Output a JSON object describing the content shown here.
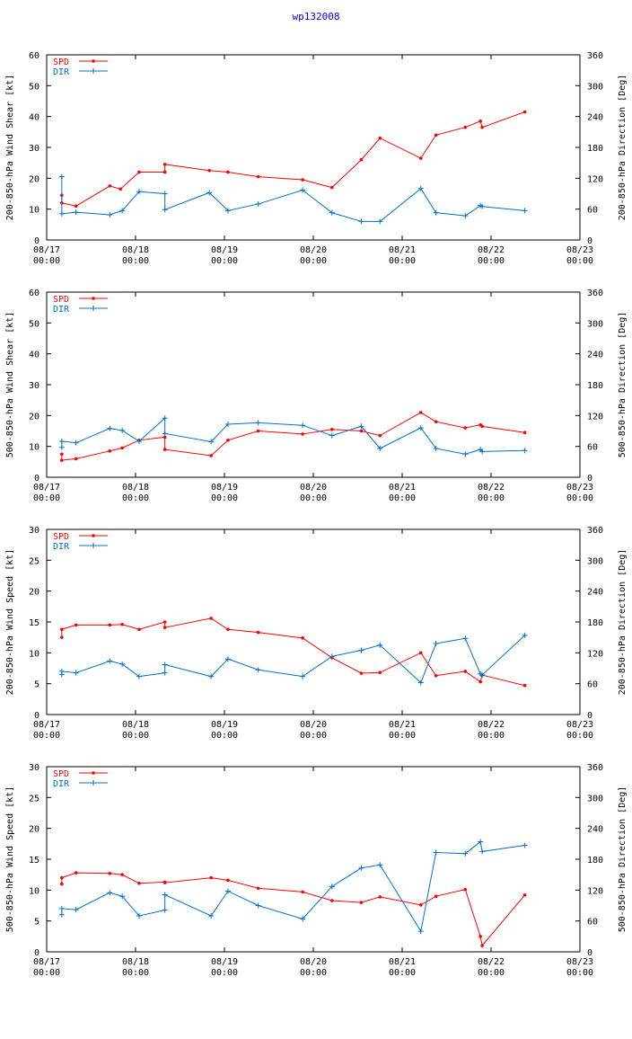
{
  "page": {
    "title": "wp132008"
  },
  "colors": {
    "spd": "#ff0000",
    "dir": "#0070d0",
    "axis": "#000000",
    "title": "#0000ff"
  },
  "x_ticks": [
    {
      "value": 0,
      "line1": "08/17",
      "line2": "00:00"
    },
    {
      "value": 1,
      "line1": "08/18",
      "line2": "00:00"
    },
    {
      "value": 2,
      "line1": "08/19",
      "line2": "00:00"
    },
    {
      "value": 3,
      "line1": "08/20",
      "line2": "00:00"
    },
    {
      "value": 4,
      "line1": "08/21",
      "line2": "00:00"
    },
    {
      "value": 5,
      "line1": "08/22",
      "line2": "00:00"
    },
    {
      "value": 6,
      "line1": "08/23",
      "line2": "00:00"
    }
  ],
  "chart_data": [
    {
      "type": "line",
      "ylabel": "200-850-hPa Wind Shear [kt]",
      "y2label": "200-850-hPa Direction [Deg]",
      "xlim": [
        0,
        6
      ],
      "ylim": [
        0,
        60
      ],
      "y2lim": [
        0,
        360
      ],
      "yticks": [
        0,
        10,
        20,
        30,
        40,
        50,
        60
      ],
      "y2ticks": [
        0,
        60,
        120,
        180,
        240,
        300,
        360
      ],
      "legend": [
        "SPD",
        "DIR"
      ],
      "series": [
        {
          "name": "SPD",
          "axis": "left",
          "x": [
            0.17,
            0.17,
            0.33,
            0.71,
            0.83,
            1.04,
            1.33,
            1.33,
            1.83,
            2.04,
            2.38,
            2.88,
            3.21,
            3.54,
            3.75,
            4.21,
            4.38,
            4.71,
            4.88,
            4.9,
            5.38
          ],
          "y": [
            14.5,
            12,
            11,
            17.5,
            16.5,
            22,
            22,
            24.5,
            22.5,
            22,
            20.5,
            19.5,
            17,
            26,
            33,
            26.5,
            34,
            36.5,
            38.5,
            36.5,
            41.5
          ]
        },
        {
          "name": "DIR",
          "axis": "right",
          "x": [
            0.17,
            0.17,
            0.33,
            0.71,
            0.85,
            1.04,
            1.33,
            1.33,
            1.83,
            2.04,
            2.38,
            2.88,
            3.21,
            3.54,
            3.75,
            4.21,
            4.38,
            4.71,
            4.88,
            4.9,
            5.38
          ],
          "y": [
            123,
            51,
            54,
            49,
            57,
            94,
            90,
            59,
            92,
            57,
            70,
            97,
            53,
            36,
            36,
            100,
            53,
            47,
            67,
            65,
            57
          ]
        }
      ]
    },
    {
      "type": "line",
      "ylabel": "500-850-hPa Wind Shear [kt]",
      "y2label": "500-850-hPa Direction [Deg]",
      "xlim": [
        0,
        6
      ],
      "ylim": [
        0,
        60
      ],
      "y2lim": [
        0,
        360
      ],
      "yticks": [
        0,
        10,
        20,
        30,
        40,
        50,
        60
      ],
      "y2ticks": [
        0,
        60,
        120,
        180,
        240,
        300,
        360
      ],
      "legend": [
        "SPD",
        "DIR"
      ],
      "series": [
        {
          "name": "SPD",
          "axis": "left",
          "x": [
            0.17,
            0.17,
            0.33,
            0.71,
            0.85,
            1.04,
            1.33,
            1.33,
            1.85,
            2.04,
            2.38,
            2.88,
            3.21,
            3.54,
            3.75,
            4.21,
            4.38,
            4.71,
            4.88,
            4.9,
            5.38
          ],
          "y": [
            7.5,
            5.5,
            6,
            8.5,
            9.5,
            12,
            13,
            9,
            7,
            12,
            15,
            14,
            15.5,
            15,
            13.5,
            21,
            18,
            16,
            17,
            16.5,
            14.5
          ]
        },
        {
          "name": "DIR",
          "axis": "right",
          "x": [
            0.17,
            0.17,
            0.33,
            0.71,
            0.85,
            1.04,
            1.33,
            1.33,
            1.85,
            2.04,
            2.38,
            2.88,
            3.21,
            3.54,
            3.75,
            4.21,
            4.38,
            4.71,
            4.88,
            4.9,
            5.38
          ],
          "y": [
            58,
            70,
            67,
            95,
            91,
            70,
            115,
            85,
            69,
            103,
            106,
            101,
            81,
            99,
            56,
            96,
            56,
            45,
            54,
            50,
            52
          ]
        }
      ]
    },
    {
      "type": "line",
      "ylabel": "200-850-hPa Wind Speed [kt]",
      "y2label": "200-850-hPa Direction [Deg]",
      "xlim": [
        0,
        6
      ],
      "ylim": [
        0,
        30
      ],
      "y2lim": [
        0,
        360
      ],
      "yticks": [
        0,
        5,
        10,
        15,
        20,
        25,
        30
      ],
      "y2ticks": [
        0,
        60,
        120,
        180,
        240,
        300,
        360
      ],
      "legend": [
        "SPD",
        "DIR"
      ],
      "series": [
        {
          "name": "SPD",
          "axis": "left",
          "x": [
            0.17,
            0.17,
            0.33,
            0.71,
            0.85,
            1.04,
            1.33,
            1.33,
            1.85,
            2.04,
            2.38,
            2.88,
            3.21,
            3.54,
            3.75,
            4.21,
            4.38,
            4.71,
            4.88,
            4.9,
            5.38
          ],
          "y": [
            12.5,
            13.8,
            14.5,
            14.5,
            14.6,
            13.8,
            15,
            14.1,
            15.6,
            13.8,
            13.3,
            12.4,
            9.2,
            6.7,
            6.8,
            10,
            6.3,
            7,
            5.3,
            6.4,
            4.7
          ]
        },
        {
          "name": "DIR",
          "axis": "right",
          "x": [
            0.17,
            0.17,
            0.33,
            0.71,
            0.85,
            1.04,
            1.33,
            1.33,
            1.85,
            2.04,
            2.38,
            2.88,
            3.21,
            3.54,
            3.75,
            4.21,
            4.38,
            4.71,
            4.88,
            4.9,
            5.38
          ],
          "y": [
            78,
            84,
            81,
            104,
            98,
            74,
            81,
            97,
            74,
            108,
            87,
            74,
            113,
            125,
            135,
            62,
            138,
            148,
            79,
            77,
            154
          ]
        }
      ]
    },
    {
      "type": "line",
      "ylabel": "500-850-hPa Wind Speed [kt]",
      "y2label": "500-850-hPa Direction [Deg]",
      "xlim": [
        0,
        6
      ],
      "ylim": [
        0,
        30
      ],
      "y2lim": [
        0,
        360
      ],
      "yticks": [
        0,
        5,
        10,
        15,
        20,
        25,
        30
      ],
      "y2ticks": [
        0,
        60,
        120,
        180,
        240,
        300,
        360
      ],
      "legend": [
        "SPD",
        "DIR"
      ],
      "series": [
        {
          "name": "SPD",
          "axis": "left",
          "x": [
            0.17,
            0.17,
            0.33,
            0.71,
            0.85,
            1.04,
            1.33,
            1.33,
            1.85,
            2.04,
            2.38,
            2.88,
            3.21,
            3.54,
            3.75,
            4.21,
            4.38,
            4.71,
            4.88,
            4.9,
            5.38
          ],
          "y": [
            11,
            12,
            12.8,
            12.7,
            12.5,
            11.1,
            11.3,
            11.2,
            12,
            11.6,
            10.3,
            9.7,
            8.3,
            8,
            8.9,
            7.6,
            9,
            10.1,
            2.5,
            1,
            9.2
          ]
        },
        {
          "name": "DIR",
          "axis": "right",
          "x": [
            0.17,
            0.17,
            0.33,
            0.71,
            0.85,
            1.04,
            1.33,
            1.33,
            1.85,
            2.04,
            2.38,
            2.88,
            3.21,
            3.54,
            3.75,
            4.21,
            4.38,
            4.71,
            4.88,
            4.9,
            5.38
          ],
          "y": [
            72,
            84,
            82,
            115,
            108,
            70,
            81,
            111,
            70,
            118,
            90,
            64,
            127,
            163,
            169,
            40,
            193,
            191,
            214,
            195,
            207
          ]
        }
      ]
    }
  ]
}
